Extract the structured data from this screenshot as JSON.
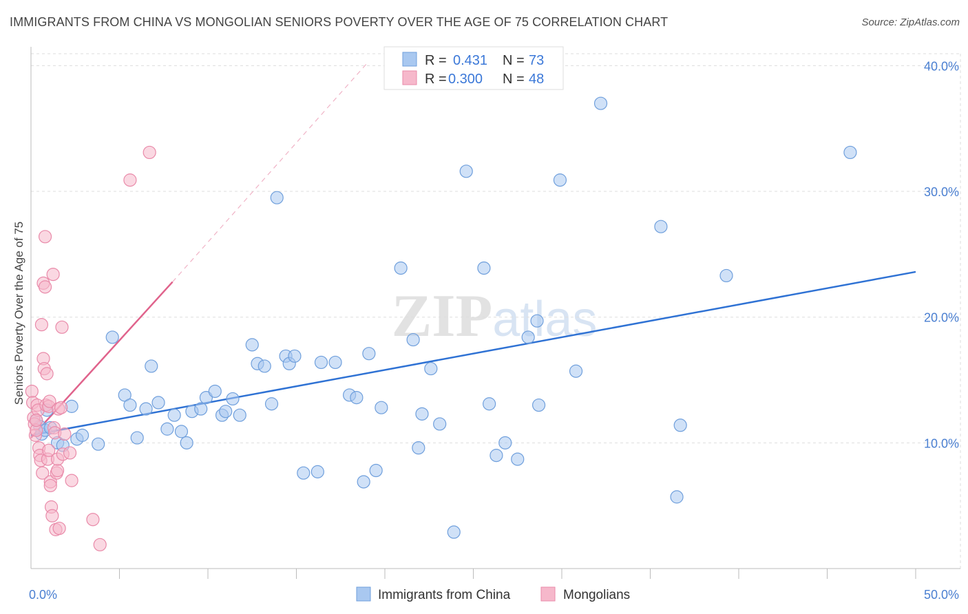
{
  "title": "IMMIGRANTS FROM CHINA VS MONGOLIAN SENIORS POVERTY OVER THE AGE OF 75 CORRELATION CHART",
  "source": "Source: ZipAtlas.com",
  "watermark": "ZIPatlas",
  "colors": {
    "blue_fill": "#a9c8f0",
    "blue_stroke": "#6f9fdc",
    "blue_line": "#2f72d4",
    "pink_fill": "#f6b8cb",
    "pink_stroke": "#e98aa9",
    "pink_line": "#e0638c",
    "grid": "#dddddd",
    "tick_text": "#4a7fd1"
  },
  "legend_box": {
    "rows": [
      {
        "r_label": "R =",
        "r_value": "0.431",
        "n_label": "N =",
        "n_value": "73",
        "color": "blue"
      },
      {
        "r_label": "R =",
        "r_value": "0.300",
        "n_label": "N =",
        "n_value": "48",
        "color": "pink"
      }
    ]
  },
  "bottom_legend": [
    "Immigrants from China",
    "Mongolians"
  ],
  "chart_data": {
    "type": "scatter",
    "title": "IMMIGRANTS FROM CHINA VS MONGOLIAN SENIORS POVERTY OVER THE AGE OF 75 CORRELATION CHART",
    "xlabel": "",
    "ylabel": "Seniors Poverty Over the Age of 75",
    "xlim": [
      0,
      50
    ],
    "ylim": [
      0,
      41.5
    ],
    "x_tick_labels": [
      "0.0%",
      "50.0%"
    ],
    "y_ticks": [
      10,
      20,
      30,
      40
    ],
    "y_tick_labels": [
      "10.0%",
      "20.0%",
      "30.0%",
      "40.0%"
    ],
    "grid": true,
    "legend_placement": "top-center",
    "series": [
      {
        "name": "Immigrants from China",
        "color": "blue",
        "R": 0.431,
        "N": 73,
        "trend": {
          "x": [
            0,
            50
          ],
          "y": [
            10.6,
            23.6
          ],
          "dashed_extension": false
        },
        "points": [
          [
            0.3,
            11.8
          ],
          [
            0.5,
            11.3
          ],
          [
            0.6,
            10.7
          ],
          [
            0.8,
            11.0
          ],
          [
            0.9,
            12.6
          ],
          [
            1.1,
            11.2
          ],
          [
            1.5,
            10.0
          ],
          [
            1.8,
            9.8
          ],
          [
            2.3,
            12.9
          ],
          [
            2.6,
            10.3
          ],
          [
            2.9,
            10.6
          ],
          [
            3.8,
            9.9
          ],
          [
            4.6,
            18.4
          ],
          [
            5.3,
            13.8
          ],
          [
            5.6,
            13.0
          ],
          [
            6.0,
            10.4
          ],
          [
            6.5,
            12.7
          ],
          [
            6.8,
            16.1
          ],
          [
            7.2,
            13.2
          ],
          [
            7.7,
            11.1
          ],
          [
            8.1,
            12.2
          ],
          [
            8.5,
            10.9
          ],
          [
            8.8,
            10.0
          ],
          [
            9.1,
            12.5
          ],
          [
            9.6,
            12.7
          ],
          [
            9.9,
            13.6
          ],
          [
            10.4,
            14.1
          ],
          [
            10.8,
            12.2
          ],
          [
            11.0,
            12.5
          ],
          [
            11.4,
            13.5
          ],
          [
            11.8,
            12.2
          ],
          [
            12.5,
            17.8
          ],
          [
            12.8,
            16.3
          ],
          [
            13.2,
            16.1
          ],
          [
            13.6,
            13.1
          ],
          [
            13.9,
            29.5
          ],
          [
            14.4,
            16.9
          ],
          [
            14.6,
            16.3
          ],
          [
            14.9,
            16.9
          ],
          [
            15.4,
            7.6
          ],
          [
            16.2,
            7.7
          ],
          [
            16.4,
            16.4
          ],
          [
            17.2,
            16.4
          ],
          [
            18.0,
            13.8
          ],
          [
            18.4,
            13.6
          ],
          [
            18.8,
            6.9
          ],
          [
            19.1,
            17.1
          ],
          [
            19.5,
            7.8
          ],
          [
            19.8,
            12.8
          ],
          [
            20.9,
            23.9
          ],
          [
            21.6,
            18.2
          ],
          [
            21.9,
            9.6
          ],
          [
            22.1,
            12.3
          ],
          [
            22.6,
            15.9
          ],
          [
            23.1,
            11.5
          ],
          [
            23.9,
            2.9
          ],
          [
            24.6,
            31.6
          ],
          [
            25.6,
            23.9
          ],
          [
            25.9,
            13.1
          ],
          [
            26.3,
            9.0
          ],
          [
            26.8,
            10.0
          ],
          [
            27.5,
            8.7
          ],
          [
            28.1,
            18.4
          ],
          [
            28.6,
            19.7
          ],
          [
            28.7,
            13.0
          ],
          [
            29.9,
            30.9
          ],
          [
            30.8,
            15.7
          ],
          [
            32.2,
            37.0
          ],
          [
            35.6,
            27.2
          ],
          [
            36.5,
            5.7
          ],
          [
            36.7,
            11.4
          ],
          [
            39.3,
            23.3
          ],
          [
            46.3,
            33.1
          ]
        ]
      },
      {
        "name": "Mongolians",
        "color": "pink",
        "R": 0.3,
        "N": 48,
        "trend": {
          "x": [
            0,
            8.0
          ],
          "y": [
            10.4,
            22.8
          ],
          "dashed_extension": {
            "x": [
              8.0,
              19.0
            ],
            "y": [
              22.8,
              40.2
            ]
          }
        },
        "points": [
          [
            0.05,
            14.1
          ],
          [
            0.1,
            13.2
          ],
          [
            0.15,
            12.0
          ],
          [
            0.2,
            11.5
          ],
          [
            0.25,
            10.6
          ],
          [
            0.3,
            11.0
          ],
          [
            0.35,
            13.0
          ],
          [
            0.4,
            12.6
          ],
          [
            0.45,
            9.6
          ],
          [
            0.5,
            9.0
          ],
          [
            0.55,
            8.6
          ],
          [
            0.6,
            19.4
          ],
          [
            0.65,
            7.6
          ],
          [
            0.7,
            22.7
          ],
          [
            0.7,
            16.7
          ],
          [
            0.75,
            15.9
          ],
          [
            0.8,
            26.4
          ],
          [
            0.8,
            22.4
          ],
          [
            0.85,
            13.0
          ],
          [
            0.9,
            15.5
          ],
          [
            0.95,
            8.7
          ],
          [
            1.0,
            12.9
          ],
          [
            1.0,
            9.4
          ],
          [
            1.05,
            13.3
          ],
          [
            1.1,
            6.9
          ],
          [
            1.1,
            6.6
          ],
          [
            1.15,
            4.9
          ],
          [
            1.2,
            4.2
          ],
          [
            1.25,
            23.4
          ],
          [
            1.3,
            11.2
          ],
          [
            1.35,
            10.8
          ],
          [
            1.4,
            3.1
          ],
          [
            1.45,
            7.6
          ],
          [
            1.5,
            7.8
          ],
          [
            1.5,
            8.7
          ],
          [
            1.55,
            12.7
          ],
          [
            1.6,
            3.2
          ],
          [
            1.7,
            12.8
          ],
          [
            1.75,
            19.2
          ],
          [
            1.8,
            9.1
          ],
          [
            1.9,
            10.7
          ],
          [
            2.2,
            9.2
          ],
          [
            2.3,
            7.0
          ],
          [
            3.5,
            3.9
          ],
          [
            3.9,
            1.9
          ],
          [
            5.6,
            30.9
          ],
          [
            6.7,
            33.1
          ],
          [
            0.3,
            11.8
          ]
        ]
      }
    ]
  }
}
